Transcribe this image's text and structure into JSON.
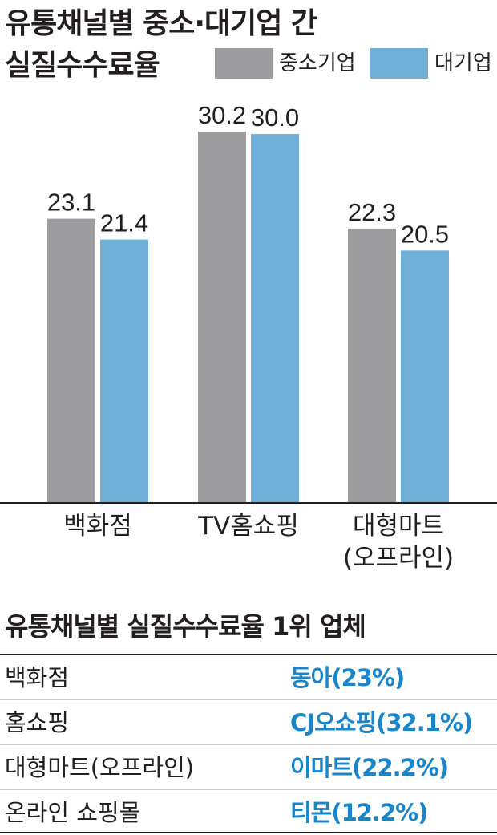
{
  "title_line1": "유통채널별 중소·대기업 간",
  "title_line2": "실질수수료율",
  "colors": {
    "sme": "#9d9d9f",
    "large": "#6fafd8",
    "accent": "#1a86c9"
  },
  "chart_data": {
    "type": "bar",
    "categories": [
      "백화점",
      "TV홈쇼핑",
      "대형마트\n(오프라인)"
    ],
    "series": [
      {
        "name": "중소기업",
        "values": [
          23.1,
          30.2,
          22.3
        ]
      },
      {
        "name": "대기업",
        "values": [
          21.4,
          30.0,
          20.5
        ]
      }
    ],
    "value_labels": [
      [
        "23.1",
        "30.2",
        "22.3"
      ],
      [
        "21.4",
        "30.0",
        "20.5"
      ]
    ],
    "ylim": [
      0,
      30.2
    ],
    "legend": "top-right",
    "grid": false
  },
  "table": {
    "title": "유통채널별 실질수수료율 1위 업체",
    "rows": [
      {
        "channel": "백화점",
        "company": "동아(23%)"
      },
      {
        "channel": "홈쇼핑",
        "company": "CJ오쇼핑(32.1%)"
      },
      {
        "channel": "대형마트(오프라인)",
        "company": "이마트(22.2%)"
      },
      {
        "channel": "온라인 쇼핑몰",
        "company": "티몬(12.2%)"
      }
    ]
  }
}
